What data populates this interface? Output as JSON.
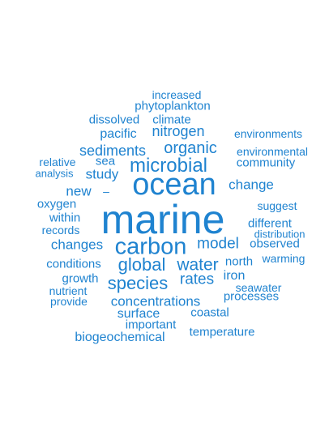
{
  "word_color": "#1f83d0",
  "words": [
    {
      "text": "increased"
    },
    {
      "text": "phytoplankton"
    },
    {
      "text": "dissolved"
    },
    {
      "text": "climate"
    },
    {
      "text": "pacific"
    },
    {
      "text": "nitrogen"
    },
    {
      "text": "environments"
    },
    {
      "text": "sediments"
    },
    {
      "text": "organic"
    },
    {
      "text": "environmental"
    },
    {
      "text": "relative"
    },
    {
      "text": "sea"
    },
    {
      "text": "microbial"
    },
    {
      "text": "community"
    },
    {
      "text": "analysis"
    },
    {
      "text": "study"
    },
    {
      "text": "ocean"
    },
    {
      "text": "change"
    },
    {
      "text": "new"
    },
    {
      "text": "–"
    },
    {
      "text": "oxygen"
    },
    {
      "text": "suggest"
    },
    {
      "text": "marine"
    },
    {
      "text": "within"
    },
    {
      "text": "different"
    },
    {
      "text": "records"
    },
    {
      "text": "distribution"
    },
    {
      "text": "changes"
    },
    {
      "text": "carbon"
    },
    {
      "text": "model"
    },
    {
      "text": "observed"
    },
    {
      "text": "conditions"
    },
    {
      "text": "global"
    },
    {
      "text": "water"
    },
    {
      "text": "north"
    },
    {
      "text": "warming"
    },
    {
      "text": "growth"
    },
    {
      "text": "rates"
    },
    {
      "text": "iron"
    },
    {
      "text": "species"
    },
    {
      "text": "seawater"
    },
    {
      "text": "nutrient"
    },
    {
      "text": "processes"
    },
    {
      "text": "provide"
    },
    {
      "text": "concentrations"
    },
    {
      "text": "surface"
    },
    {
      "text": "coastal"
    },
    {
      "text": "important"
    },
    {
      "text": "biogeochemical"
    },
    {
      "text": "temperature"
    }
  ]
}
